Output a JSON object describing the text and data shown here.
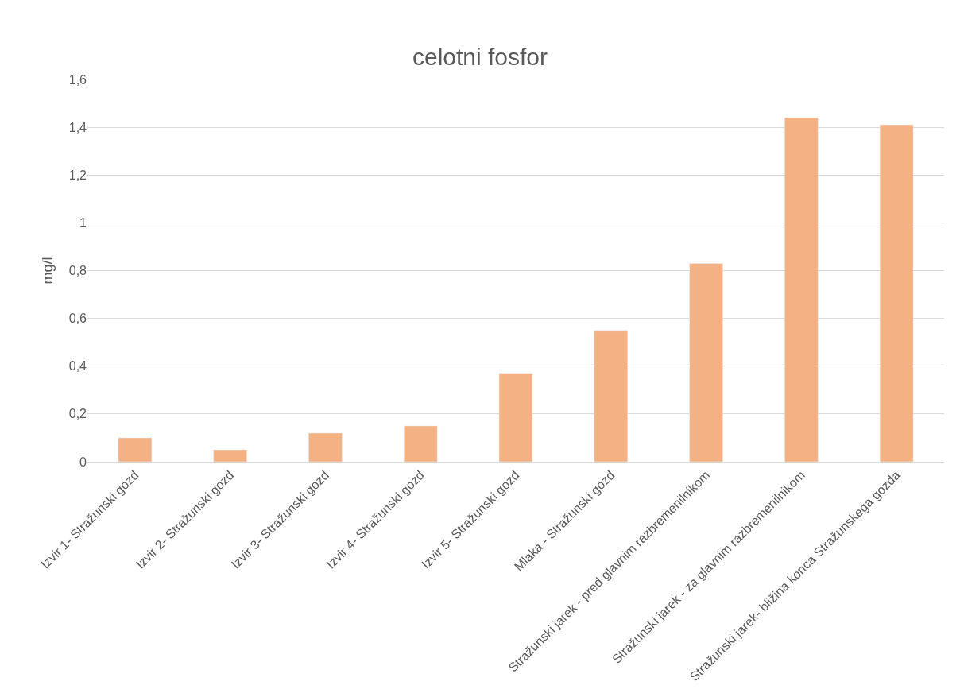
{
  "chart_data": {
    "type": "bar",
    "title": "celotni fosfor",
    "ylabel": "mg/l",
    "categories": [
      "Izvir 1- Stražunski gozd",
      "Izvir 2- Stražunski gozd",
      "Izvir 3- Stražunski gozd",
      "Izvir 4- Stražunski gozd",
      "Izvir 5- Stražunski gozd",
      "Mlaka - Stražunski gozd",
      "Stražunski jarek - pred glavnim razbremenilnikom",
      "Stražunski jarek - za glavnim razbremenilnikom",
      "Stražunski jarek- bližina konca Stražunskega gozda"
    ],
    "values": [
      0.1,
      0.05,
      0.12,
      0.15,
      0.37,
      0.55,
      0.83,
      1.44,
      1.41
    ],
    "color": "#f4b183",
    "ylim": [
      0,
      1.6
    ],
    "yticks": [
      0,
      {
        "value": 0.2,
        "label": "0,2"
      },
      {
        "value": 0.4,
        "label": "0,4"
      },
      {
        "value": 0.6,
        "label": "0,6"
      },
      {
        "value": 0.8,
        "label": "0,8"
      },
      1,
      {
        "value": 1.2,
        "label": "1,2"
      },
      {
        "value": 1.4,
        "label": "1,4"
      },
      {
        "value": 1.6,
        "label": "1,6"
      }
    ],
    "grid": "y"
  }
}
